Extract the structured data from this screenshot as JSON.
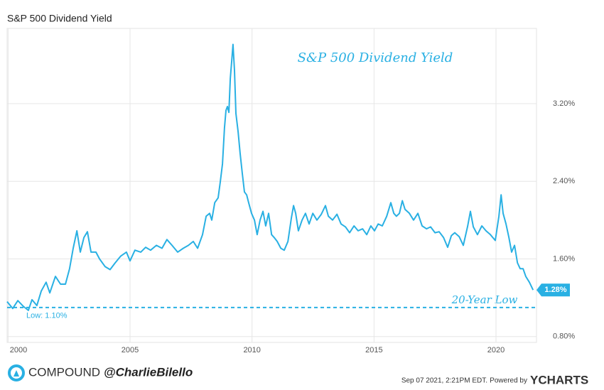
{
  "chart_data": {
    "type": "line",
    "title": "S&P 500 Dividend Yield",
    "annotations": {
      "chart_label": "S&P 500 Dividend Yield",
      "low_note": "20-Year Low"
    },
    "low_line": {
      "value": 1.1,
      "label": "Low: 1.10%"
    },
    "last_value": {
      "value": 1.28,
      "label": "1.28%"
    },
    "footer": {
      "brand": "COMPOUND",
      "handle": "@CharlieBilello",
      "timestamp": "Sep 07 2021, 2:21PM EDT.",
      "powered": "Powered by",
      "provider": "YCHARTS"
    },
    "x": [
      1999.96,
      2000.19,
      2000.4,
      2000.63,
      2000.83,
      2000.98,
      2001.18,
      2001.36,
      2001.56,
      2001.71,
      2001.94,
      2002.15,
      2002.35,
      2002.52,
      2002.67,
      2002.82,
      2002.96,
      2003.11,
      2003.25,
      2003.4,
      2003.6,
      2003.75,
      2003.98,
      2004.18,
      2004.39,
      2004.62,
      2004.85,
      2005.0,
      2005.2,
      2005.44,
      2005.64,
      2005.84,
      2006.08,
      2006.31,
      2006.51,
      2006.72,
      2006.95,
      2007.18,
      2007.39,
      2007.59,
      2007.77,
      2007.97,
      2008.12,
      2008.26,
      2008.35,
      2008.47,
      2008.61,
      2008.7,
      2008.79,
      2008.87,
      2008.93,
      2008.99,
      2009.05,
      2009.11,
      2009.17,
      2009.22,
      2009.28,
      2009.34,
      2009.43,
      2009.51,
      2009.6,
      2009.69,
      2009.78,
      2009.86,
      2009.98,
      2010.1,
      2010.21,
      2010.33,
      2010.45,
      2010.56,
      2010.68,
      2010.8,
      2010.91,
      2011.03,
      2011.18,
      2011.32,
      2011.47,
      2011.61,
      2011.7,
      2011.79,
      2011.9,
      2012.05,
      2012.19,
      2012.34,
      2012.49,
      2012.66,
      2012.84,
      2013.01,
      2013.13,
      2013.3,
      2013.48,
      2013.65,
      2013.83,
      2014.0,
      2014.18,
      2014.35,
      2014.53,
      2014.7,
      2014.87,
      2015.02,
      2015.17,
      2015.34,
      2015.52,
      2015.69,
      2015.81,
      2015.92,
      2016.04,
      2016.16,
      2016.27,
      2016.45,
      2016.62,
      2016.8,
      2016.97,
      2017.15,
      2017.32,
      2017.5,
      2017.67,
      2017.85,
      2018.02,
      2018.17,
      2018.31,
      2018.49,
      2018.66,
      2018.84,
      2018.95,
      2019.07,
      2019.24,
      2019.42,
      2019.59,
      2019.77,
      2019.97,
      2020.12,
      2020.21,
      2020.29,
      2020.41,
      2020.53,
      2020.64,
      2020.76,
      2020.88,
      2020.99,
      2021.11,
      2021.22,
      2021.37,
      2021.52
    ],
    "series": [
      {
        "name": "S&P 500 Dividend Yield",
        "color": "#29b0e3",
        "values": [
          1.16,
          1.09,
          1.17,
          1.11,
          1.07,
          1.18,
          1.12,
          1.27,
          1.36,
          1.25,
          1.42,
          1.34,
          1.34,
          1.5,
          1.71,
          1.89,
          1.67,
          1.82,
          1.88,
          1.67,
          1.67,
          1.6,
          1.52,
          1.49,
          1.56,
          1.63,
          1.67,
          1.58,
          1.69,
          1.67,
          1.72,
          1.69,
          1.74,
          1.71,
          1.8,
          1.74,
          1.67,
          1.71,
          1.74,
          1.78,
          1.71,
          1.85,
          2.04,
          2.07,
          2.0,
          2.18,
          2.23,
          2.4,
          2.58,
          2.95,
          3.13,
          3.17,
          3.11,
          3.46,
          3.65,
          3.81,
          3.54,
          3.1,
          2.91,
          2.69,
          2.48,
          2.29,
          2.26,
          2.18,
          2.07,
          2.0,
          1.85,
          2.0,
          2.09,
          1.94,
          2.07,
          1.85,
          1.82,
          1.78,
          1.71,
          1.69,
          1.78,
          2.02,
          2.15,
          2.07,
          1.89,
          2.0,
          2.07,
          1.96,
          2.07,
          2.0,
          2.06,
          2.15,
          2.04,
          2.0,
          2.06,
          1.96,
          1.93,
          1.87,
          1.94,
          1.89,
          1.91,
          1.85,
          1.94,
          1.89,
          1.96,
          1.94,
          2.04,
          2.18,
          2.07,
          2.04,
          2.07,
          2.2,
          2.11,
          2.07,
          2.0,
          2.07,
          1.94,
          1.91,
          1.93,
          1.87,
          1.88,
          1.82,
          1.72,
          1.84,
          1.87,
          1.83,
          1.74,
          1.94,
          2.09,
          1.93,
          1.85,
          1.94,
          1.89,
          1.85,
          1.79,
          2.04,
          2.26,
          2.07,
          1.96,
          1.82,
          1.67,
          1.74,
          1.56,
          1.5,
          1.5,
          1.42,
          1.36,
          1.28
        ]
      }
    ],
    "xlim": [
      1999.96,
      2021.66
    ],
    "xticks": [
      2000,
      2005,
      2010,
      2015,
      2020
    ],
    "ylim": [
      0.74,
      3.975
    ],
    "yticks": [
      {
        "value": 0.8,
        "label": "0.80%"
      },
      {
        "value": 1.6,
        "label": "1.60%"
      },
      {
        "value": 2.4,
        "label": "2.40%"
      },
      {
        "value": 3.2,
        "label": "3.20%"
      }
    ],
    "grid": true
  }
}
